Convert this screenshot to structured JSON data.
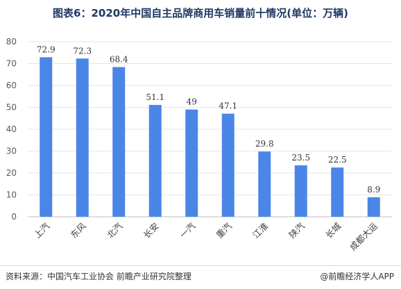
{
  "chart_data": {
    "type": "bar",
    "title": "图表6：2020年中国自主品牌商用车销量前十情况(单位：万辆)",
    "xlabel": "",
    "ylabel": "",
    "categories": [
      "上汽",
      "东风",
      "北汽",
      "长安",
      "一汽",
      "重汽",
      "江淮",
      "陕汽",
      "长城",
      "成都大运"
    ],
    "values": [
      72.9,
      72.3,
      68.4,
      51.1,
      49,
      47.1,
      29.8,
      23.5,
      22.5,
      8.9
    ],
    "ylim": [
      0,
      80
    ],
    "yticks": [
      0,
      10,
      20,
      30,
      40,
      50,
      60,
      70,
      80
    ],
    "grid": true,
    "bar_color": "#4a86e8"
  },
  "footer": {
    "source": "资料来源：中国汽车工业协会 前瞻产业研究院整理",
    "credit": "@前瞻经济学人APP"
  }
}
